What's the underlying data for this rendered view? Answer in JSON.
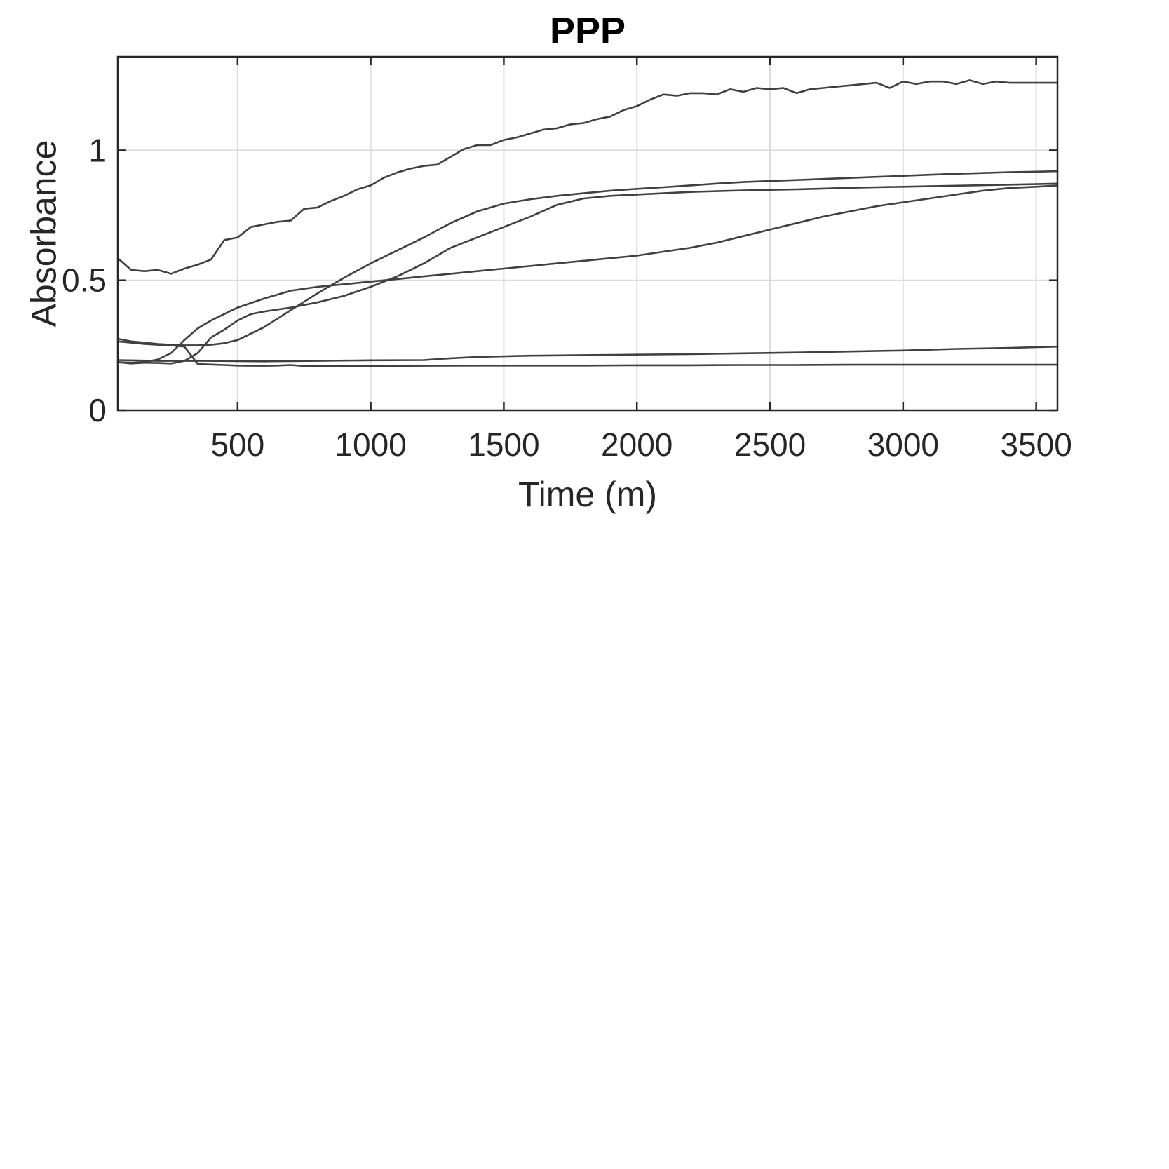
{
  "chart_data": {
    "type": "line",
    "title": "PPP",
    "xlabel": "Time (m)",
    "ylabel": "Absorbance",
    "xlim": [
      50,
      3580
    ],
    "ylim": [
      0,
      1.36
    ],
    "xticks": [
      500,
      1000,
      1500,
      2000,
      2500,
      3000,
      3500
    ],
    "yticks": [
      0,
      0.5,
      1
    ],
    "xtick_labels": [
      "500",
      "1000",
      "1500",
      "2000",
      "2500",
      "3000",
      "3500"
    ],
    "ytick_labels": [
      "0",
      "0.5",
      "1"
    ],
    "grid": true,
    "line_color": "#404040",
    "series": [
      {
        "x": [
          50,
          100,
          150,
          200,
          250,
          300,
          350,
          400,
          450,
          500,
          550,
          600,
          650,
          700,
          750,
          800,
          850,
          900,
          950,
          1000,
          1050,
          1100,
          1150,
          1200,
          1250,
          1300,
          1350,
          1400,
          1450,
          1500,
          1550,
          1600,
          1650,
          1700,
          1750,
          1800,
          1850,
          1900,
          1950,
          2000,
          2050,
          2100,
          2150,
          2200,
          2250,
          2300,
          2350,
          2400,
          2450,
          2500,
          2550,
          2600,
          2650,
          2700,
          2750,
          2800,
          2850,
          2900,
          2950,
          3000,
          3050,
          3100,
          3150,
          3200,
          3250,
          3300,
          3350,
          3400,
          3450,
          3500,
          3550,
          3580
        ],
        "y": [
          0.585,
          0.54,
          0.535,
          0.54,
          0.525,
          0.545,
          0.56,
          0.58,
          0.655,
          0.665,
          0.705,
          0.715,
          0.725,
          0.73,
          0.775,
          0.78,
          0.805,
          0.825,
          0.85,
          0.865,
          0.895,
          0.915,
          0.93,
          0.94,
          0.945,
          0.975,
          1.005,
          1.02,
          1.02,
          1.04,
          1.05,
          1.065,
          1.08,
          1.085,
          1.1,
          1.105,
          1.12,
          1.13,
          1.155,
          1.17,
          1.195,
          1.215,
          1.21,
          1.22,
          1.22,
          1.215,
          1.235,
          1.225,
          1.24,
          1.235,
          1.24,
          1.22,
          1.235,
          1.24,
          1.245,
          1.25,
          1.255,
          1.26,
          1.24,
          1.265,
          1.255,
          1.265,
          1.265,
          1.255,
          1.27,
          1.255,
          1.265,
          1.26,
          1.26,
          1.26,
          1.26,
          1.26
        ]
      },
      {
        "x": [
          50,
          100,
          150,
          200,
          250,
          300,
          350,
          400,
          500,
          600,
          700,
          800,
          900,
          1000,
          1100,
          1200,
          1300,
          1400,
          1500,
          1600,
          1700,
          1800,
          1900,
          2000,
          2100,
          2200,
          2300,
          2400,
          2500,
          2600,
          2700,
          2800,
          2900,
          3000,
          3100,
          3200,
          3300,
          3400,
          3500,
          3580
        ],
        "y": [
          0.185,
          0.183,
          0.185,
          0.195,
          0.22,
          0.27,
          0.315,
          0.345,
          0.395,
          0.43,
          0.46,
          0.475,
          0.485,
          0.495,
          0.505,
          0.515,
          0.525,
          0.535,
          0.545,
          0.555,
          0.565,
          0.575,
          0.585,
          0.595,
          0.61,
          0.625,
          0.645,
          0.67,
          0.695,
          0.72,
          0.745,
          0.765,
          0.785,
          0.8,
          0.815,
          0.83,
          0.845,
          0.855,
          0.86,
          0.865
        ]
      },
      {
        "x": [
          50,
          100,
          150,
          200,
          250,
          300,
          350,
          400,
          450,
          500,
          550,
          600,
          700,
          800,
          900,
          1000,
          1100,
          1200,
          1300,
          1400,
          1500,
          1600,
          1700,
          1800,
          1900,
          2000,
          2100,
          2200,
          2300,
          2400,
          2500,
          2600,
          2700,
          2800,
          2900,
          3000,
          3100,
          3200,
          3300,
          3400,
          3500,
          3580
        ],
        "y": [
          0.185,
          0.18,
          0.183,
          0.182,
          0.18,
          0.19,
          0.22,
          0.28,
          0.31,
          0.345,
          0.37,
          0.38,
          0.395,
          0.415,
          0.44,
          0.475,
          0.515,
          0.565,
          0.625,
          0.665,
          0.705,
          0.745,
          0.79,
          0.815,
          0.825,
          0.83,
          0.835,
          0.84,
          0.843,
          0.846,
          0.848,
          0.85,
          0.853,
          0.856,
          0.858,
          0.86,
          0.862,
          0.864,
          0.866,
          0.868,
          0.87,
          0.872
        ]
      },
      {
        "x": [
          50,
          100,
          150,
          200,
          250,
          300,
          350,
          400,
          450,
          500,
          600,
          700,
          800,
          900,
          1000,
          1100,
          1200,
          1300,
          1400,
          1500,
          1600,
          1700,
          1800,
          1900,
          2000,
          2100,
          2200,
          2300,
          2400,
          2500,
          2600,
          2700,
          2800,
          2900,
          3000,
          3100,
          3200,
          3300,
          3400,
          3500,
          3580
        ],
        "y": [
          0.275,
          0.265,
          0.26,
          0.255,
          0.252,
          0.25,
          0.25,
          0.252,
          0.258,
          0.27,
          0.32,
          0.385,
          0.45,
          0.51,
          0.565,
          0.615,
          0.665,
          0.72,
          0.765,
          0.795,
          0.812,
          0.825,
          0.835,
          0.845,
          0.852,
          0.858,
          0.865,
          0.872,
          0.878,
          0.882,
          0.886,
          0.89,
          0.894,
          0.898,
          0.902,
          0.906,
          0.91,
          0.913,
          0.916,
          0.918,
          0.92
        ]
      },
      {
        "x": [
          50,
          100,
          150,
          200,
          250,
          300,
          350,
          400,
          450,
          500,
          550,
          600,
          650,
          700,
          750,
          800,
          1000,
          1200,
          1400,
          1600,
          1800,
          2000,
          2200,
          2400,
          2600,
          2800,
          3000,
          3200,
          3400,
          3580
        ],
        "y": [
          0.265,
          0.26,
          0.255,
          0.252,
          0.25,
          0.245,
          0.178,
          0.176,
          0.174,
          0.172,
          0.171,
          0.171,
          0.172,
          0.174,
          0.17,
          0.17,
          0.17,
          0.171,
          0.172,
          0.172,
          0.172,
          0.173,
          0.173,
          0.174,
          0.174,
          0.175,
          0.175,
          0.175,
          0.175,
          0.175
        ]
      },
      {
        "x": [
          50,
          200,
          400,
          600,
          800,
          1000,
          1200,
          1300,
          1400,
          1600,
          1800,
          2000,
          2200,
          2400,
          2600,
          2800,
          3000,
          3200,
          3400,
          3580
        ],
        "y": [
          0.193,
          0.19,
          0.19,
          0.188,
          0.19,
          0.192,
          0.193,
          0.2,
          0.205,
          0.21,
          0.212,
          0.214,
          0.216,
          0.219,
          0.222,
          0.226,
          0.23,
          0.236,
          0.24,
          0.245
        ]
      }
    ]
  }
}
